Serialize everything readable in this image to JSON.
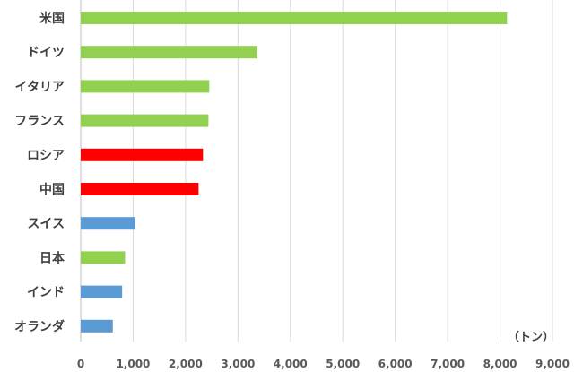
{
  "chart_data": {
    "type": "bar",
    "orientation": "horizontal",
    "categories": [
      "米国",
      "ドイツ",
      "イタリア",
      "フランス",
      "ロシア",
      "中国",
      "スイス",
      "日本",
      "インド",
      "オランダ"
    ],
    "values": [
      8133,
      3370,
      2452,
      2436,
      2332,
      2248,
      1040,
      846,
      790,
      612
    ],
    "bar_colors": [
      "#92D050",
      "#92D050",
      "#92D050",
      "#92D050",
      "#FF0000",
      "#FF0000",
      "#5B9BD5",
      "#92D050",
      "#5B9BD5",
      "#5B9BD5"
    ],
    "xlim": [
      0,
      9000
    ],
    "x_ticks": [
      0,
      1000,
      2000,
      3000,
      4000,
      5000,
      6000,
      7000,
      8000,
      9000
    ],
    "x_tick_labels": [
      "0",
      "1,000",
      "2,000",
      "3,000",
      "4,000",
      "5,000",
      "6,000",
      "7,000",
      "8,000",
      "9,000"
    ],
    "unit_label": "（トン）",
    "grid": "vertical",
    "legend": "none"
  }
}
